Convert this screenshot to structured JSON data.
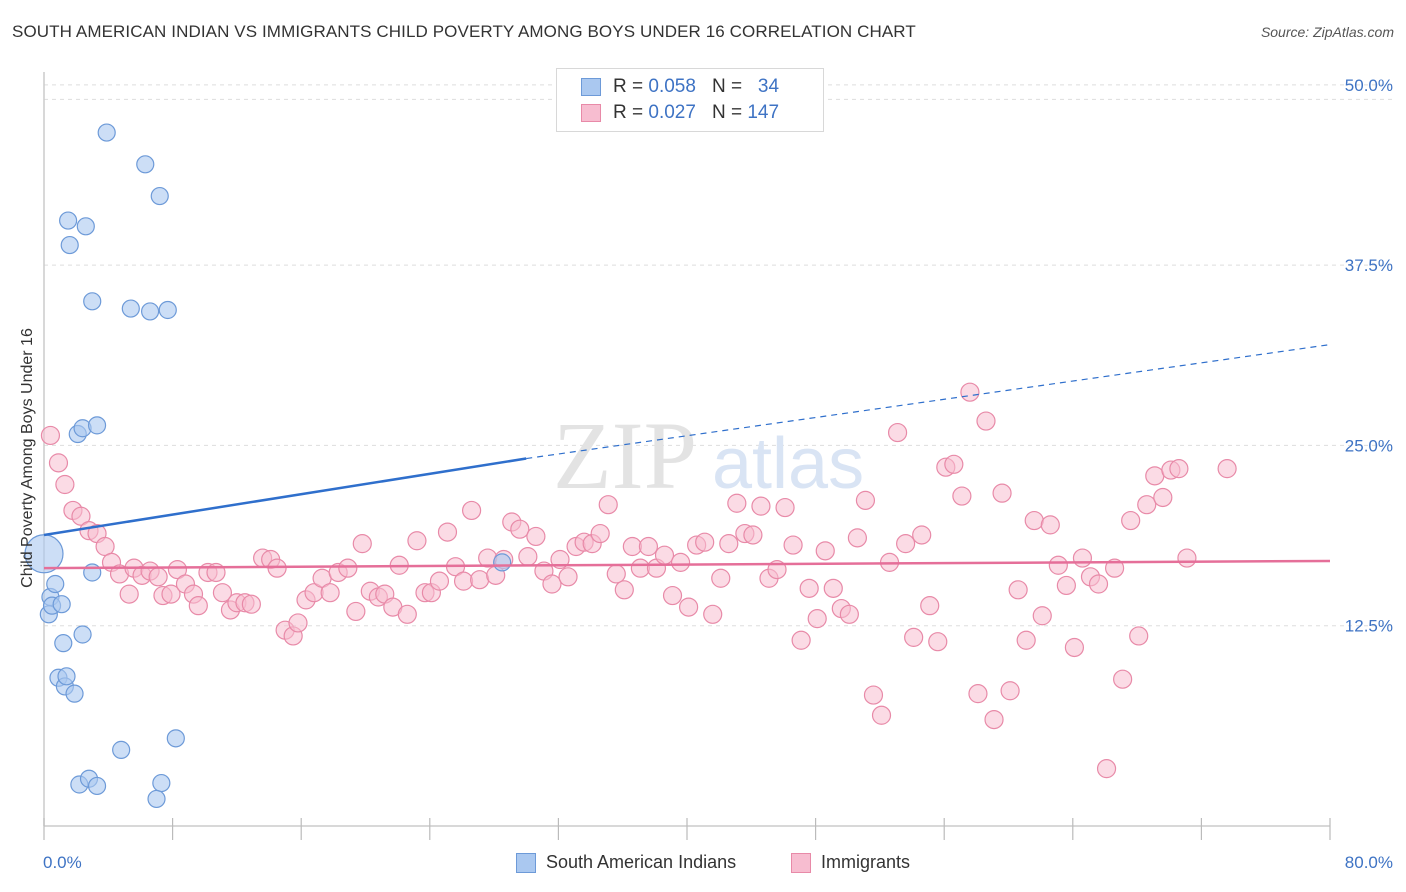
{
  "title": "SOUTH AMERICAN INDIAN VS IMMIGRANTS CHILD POVERTY AMONG BOYS UNDER 16 CORRELATION CHART",
  "source": "Source: ZipAtlas.com",
  "watermark": {
    "zip": "ZIP",
    "atlas": "atlas"
  },
  "legend": {
    "rows": [
      {
        "r_label": "R =",
        "r_value": "0.058",
        "n_label": "N =",
        "n_value": "34"
      },
      {
        "r_label": "R =",
        "r_value": "0.027",
        "n_label": "N =",
        "n_value": "147"
      }
    ]
  },
  "bottom_legend": {
    "series1": "South American Indians",
    "series2": "Immigrants"
  },
  "x_tick_labels": {
    "min": "0.0%",
    "max": "80.0%"
  },
  "chart_data": {
    "type": "scatter",
    "title": "SOUTH AMERICAN INDIAN VS IMMIGRANTS CHILD POVERTY AMONG BOYS UNDER 16 CORRELATION CHART",
    "xlabel": "",
    "ylabel": "Child Poverty Among Boys Under 16",
    "xlim": [
      0,
      80
    ],
    "ylim": [
      0,
      52
    ],
    "y_ticks": [
      12.5,
      25.0,
      37.5,
      50.0
    ],
    "y_tick_labels": [
      "12.5%",
      "25.0%",
      "37.5%",
      "50.0%"
    ],
    "grid": true,
    "legend_position": "top-center",
    "colors": {
      "series1_fill": "#aac8f0",
      "series1_stroke": "#6d9ad8",
      "series1_line": "#2f6fcc",
      "series2_fill": "#f7bdd0",
      "series2_stroke": "#e88aa8",
      "series2_line": "#e56f99",
      "tick_label": "#3e73c4"
    },
    "series": [
      {
        "name": "South American Indians",
        "R": 0.058,
        "N": 34,
        "trend": {
          "x": [
            0,
            30
          ],
          "y": [
            19.9,
            25.2
          ],
          "dashed_to": [
            80,
            33.1
          ]
        },
        "points": [
          [
            0,
            18.6
          ],
          [
            0.3,
            14.4
          ],
          [
            0.4,
            15.6
          ],
          [
            0.5,
            15.0
          ],
          [
            0.7,
            16.5
          ],
          [
            1.1,
            15.1
          ],
          [
            1.2,
            12.4
          ],
          [
            0.9,
            10.0
          ],
          [
            1.3,
            9.4
          ],
          [
            1.4,
            10.1
          ],
          [
            1.9,
            8.9
          ],
          [
            1.5,
            41.7
          ],
          [
            1.6,
            40.0
          ],
          [
            2.6,
            41.3
          ],
          [
            2.1,
            26.9
          ],
          [
            2.4,
            27.3
          ],
          [
            3.3,
            27.5
          ],
          [
            3.0,
            36.1
          ],
          [
            3.0,
            17.3
          ],
          [
            2.4,
            13.0
          ],
          [
            3.9,
            47.8
          ],
          [
            5.4,
            35.6
          ],
          [
            6.3,
            45.6
          ],
          [
            6.6,
            35.4
          ],
          [
            7.2,
            43.4
          ],
          [
            7.7,
            35.5
          ],
          [
            4.8,
            5.0
          ],
          [
            8.2,
            5.8
          ],
          [
            2.2,
            2.6
          ],
          [
            2.8,
            3.0
          ],
          [
            3.3,
            2.5
          ],
          [
            7.3,
            2.7
          ],
          [
            7.0,
            1.6
          ],
          [
            28.5,
            18.0
          ]
        ]
      },
      {
        "name": "Immigrants",
        "R": 0.027,
        "N": 147,
        "trend": {
          "x": [
            0,
            80
          ],
          "y": [
            17.6,
            18.1
          ]
        },
        "points": [
          [
            0.4,
            26.8
          ],
          [
            0.9,
            24.9
          ],
          [
            1.3,
            23.4
          ],
          [
            1.8,
            21.6
          ],
          [
            2.3,
            21.2
          ],
          [
            2.8,
            20.2
          ],
          [
            3.3,
            20.0
          ],
          [
            3.8,
            19.1
          ],
          [
            4.2,
            18.0
          ],
          [
            4.7,
            17.2
          ],
          [
            5.3,
            15.8
          ],
          [
            5.6,
            17.6
          ],
          [
            6.1,
            17.1
          ],
          [
            6.6,
            17.4
          ],
          [
            7.1,
            17.0
          ],
          [
            7.4,
            15.7
          ],
          [
            7.9,
            15.8
          ],
          [
            8.3,
            17.5
          ],
          [
            8.8,
            16.5
          ],
          [
            9.3,
            15.8
          ],
          [
            9.6,
            15.0
          ],
          [
            10.2,
            17.3
          ],
          [
            10.7,
            17.3
          ],
          [
            11.1,
            15.9
          ],
          [
            11.6,
            14.7
          ],
          [
            12.0,
            15.2
          ],
          [
            12.5,
            15.2
          ],
          [
            12.9,
            15.1
          ],
          [
            13.6,
            18.3
          ],
          [
            14.1,
            18.2
          ],
          [
            14.5,
            17.6
          ],
          [
            15.0,
            13.3
          ],
          [
            15.5,
            12.9
          ],
          [
            15.8,
            13.8
          ],
          [
            16.3,
            15.4
          ],
          [
            16.8,
            15.9
          ],
          [
            17.3,
            16.9
          ],
          [
            17.8,
            15.9
          ],
          [
            18.3,
            17.3
          ],
          [
            18.9,
            17.6
          ],
          [
            19.4,
            14.6
          ],
          [
            19.8,
            19.3
          ],
          [
            20.3,
            16.0
          ],
          [
            20.8,
            15.6
          ],
          [
            21.2,
            15.8
          ],
          [
            21.7,
            14.9
          ],
          [
            22.1,
            17.8
          ],
          [
            22.6,
            14.4
          ],
          [
            23.2,
            19.5
          ],
          [
            23.7,
            15.9
          ],
          [
            24.1,
            15.9
          ],
          [
            24.6,
            16.7
          ],
          [
            25.1,
            20.1
          ],
          [
            25.6,
            17.7
          ],
          [
            26.1,
            16.7
          ],
          [
            26.6,
            21.6
          ],
          [
            27.1,
            16.8
          ],
          [
            27.6,
            18.3
          ],
          [
            28.1,
            17.1
          ],
          [
            28.6,
            18.2
          ],
          [
            29.1,
            20.8
          ],
          [
            29.6,
            20.3
          ],
          [
            30.1,
            18.4
          ],
          [
            30.6,
            19.8
          ],
          [
            31.1,
            17.4
          ],
          [
            31.6,
            16.5
          ],
          [
            32.1,
            18.2
          ],
          [
            32.6,
            17.0
          ],
          [
            33.1,
            19.1
          ],
          [
            33.6,
            19.4
          ],
          [
            34.1,
            19.3
          ],
          [
            34.6,
            20.0
          ],
          [
            35.1,
            22.0
          ],
          [
            35.6,
            17.2
          ],
          [
            36.1,
            16.1
          ],
          [
            36.6,
            19.1
          ],
          [
            37.1,
            17.6
          ],
          [
            37.6,
            19.1
          ],
          [
            38.1,
            17.6
          ],
          [
            38.6,
            18.5
          ],
          [
            39.1,
            15.7
          ],
          [
            39.6,
            18.0
          ],
          [
            40.1,
            14.9
          ],
          [
            40.6,
            19.2
          ],
          [
            41.1,
            19.4
          ],
          [
            41.6,
            14.4
          ],
          [
            42.1,
            16.9
          ],
          [
            42.6,
            19.3
          ],
          [
            43.1,
            22.1
          ],
          [
            43.6,
            20.0
          ],
          [
            44.1,
            19.9
          ],
          [
            44.6,
            21.9
          ],
          [
            45.1,
            16.9
          ],
          [
            45.6,
            17.5
          ],
          [
            46.1,
            21.8
          ],
          [
            46.6,
            19.2
          ],
          [
            47.1,
            12.6
          ],
          [
            47.6,
            16.2
          ],
          [
            48.1,
            14.1
          ],
          [
            48.6,
            18.8
          ],
          [
            49.1,
            16.2
          ],
          [
            49.6,
            14.8
          ],
          [
            50.1,
            14.4
          ],
          [
            50.6,
            19.7
          ],
          [
            51.1,
            22.3
          ],
          [
            51.6,
            8.8
          ],
          [
            52.1,
            7.4
          ],
          [
            52.6,
            18.0
          ],
          [
            53.1,
            27.0
          ],
          [
            53.6,
            19.3
          ],
          [
            54.1,
            12.8
          ],
          [
            54.6,
            19.9
          ],
          [
            55.1,
            15.0
          ],
          [
            55.6,
            12.5
          ],
          [
            56.1,
            24.6
          ],
          [
            56.6,
            24.8
          ],
          [
            57.1,
            22.6
          ],
          [
            57.6,
            29.8
          ],
          [
            58.1,
            8.9
          ],
          [
            58.6,
            27.8
          ],
          [
            59.1,
            7.1
          ],
          [
            59.6,
            22.8
          ],
          [
            60.1,
            9.1
          ],
          [
            60.6,
            16.1
          ],
          [
            61.1,
            12.6
          ],
          [
            61.6,
            20.9
          ],
          [
            62.1,
            14.3
          ],
          [
            62.6,
            20.6
          ],
          [
            63.1,
            17.8
          ],
          [
            63.6,
            16.4
          ],
          [
            64.1,
            12.1
          ],
          [
            64.6,
            18.3
          ],
          [
            65.1,
            17.0
          ],
          [
            65.6,
            16.5
          ],
          [
            66.1,
            3.7
          ],
          [
            66.6,
            17.6
          ],
          [
            67.1,
            9.9
          ],
          [
            67.6,
            20.9
          ],
          [
            68.1,
            12.9
          ],
          [
            68.6,
            22.0
          ],
          [
            69.1,
            24.0
          ],
          [
            69.6,
            22.5
          ],
          [
            70.1,
            24.4
          ],
          [
            70.6,
            24.5
          ],
          [
            71.1,
            18.3
          ],
          [
            73.6,
            24.5
          ]
        ]
      }
    ]
  }
}
